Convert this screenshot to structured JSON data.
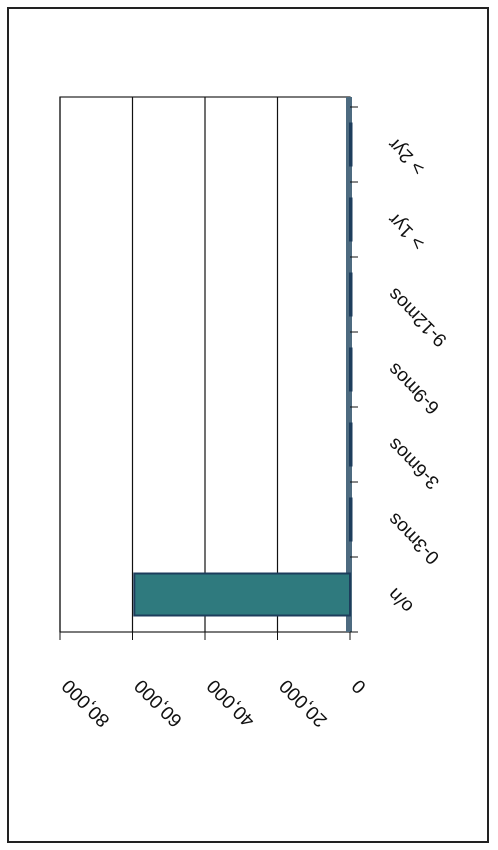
{
  "chart_data": {
    "type": "bar",
    "orientation": "rotated",
    "color": "#2f7a7e",
    "categories": [
      "o/n",
      "0-3mos",
      "3-6mos",
      "6-9mos",
      "9-12mos",
      "> 1yr",
      "> 2yr"
    ],
    "values": [
      59500,
      0,
      0,
      0,
      0,
      0,
      0
    ],
    "ylim": [
      0,
      80000
    ],
    "yticks": [
      0,
      {
        "value": 20000,
        "label": "20,000"
      },
      {
        "value": 40000,
        "label": "40,000"
      },
      {
        "value": 60000,
        "label": "60,000"
      },
      {
        "value": 80000,
        "label": "80,000"
      }
    ],
    "grid": true
  }
}
